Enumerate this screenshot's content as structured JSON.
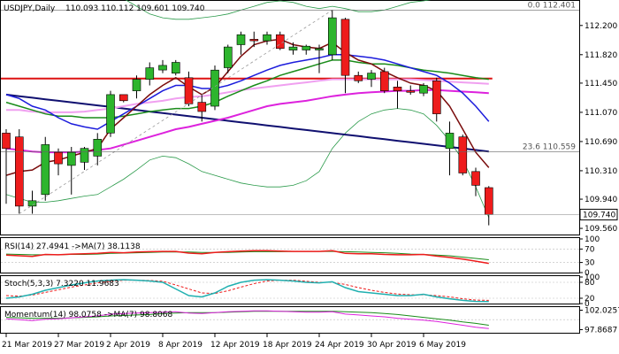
{
  "chart_data": {
    "type": "candlestick",
    "header": {
      "symbol": "USDJPY,Daily",
      "ohlc": "110.093 110.112 109.601 109.740"
    },
    "price_axis": {
      "ylim": [
        109.48,
        112.52
      ],
      "ticks": [
        "112.200",
        "111.820",
        "111.450",
        "111.070",
        "110.690",
        "110.310",
        "109.940",
        "109.560"
      ],
      "tick_values": [
        112.2,
        111.82,
        111.45,
        111.07,
        110.69,
        110.31,
        109.94,
        109.56
      ],
      "last_price_label": "109.740",
      "last_price": 109.74
    },
    "fib_levels": [
      {
        "label": "0.0 112.401",
        "value": 112.401
      },
      {
        "label": "23.6 110.559",
        "value": 110.559
      }
    ],
    "x_axis_labels": [
      {
        "label": "21 Mar 2019",
        "index": 0
      },
      {
        "label": "27 Mar 2019",
        "index": 4
      },
      {
        "label": "2 Apr 2019",
        "index": 8
      },
      {
        "label": "8 Apr 2019",
        "index": 12
      },
      {
        "label": "12 Apr 2019",
        "index": 16
      },
      {
        "label": "18 Apr 2019",
        "index": 20
      },
      {
        "label": "24 Apr 2019",
        "index": 24
      },
      {
        "label": "30 Apr 2019",
        "index": 28
      },
      {
        "label": "6 May 2019",
        "index": 32
      }
    ],
    "candles": [
      {
        "o": 110.8,
        "h": 110.85,
        "l": 109.88,
        "c": 110.6
      },
      {
        "o": 110.75,
        "h": 110.85,
        "l": 109.75,
        "c": 109.85
      },
      {
        "o": 109.85,
        "h": 110.05,
        "l": 109.75,
        "c": 109.92
      },
      {
        "o": 110.0,
        "h": 110.75,
        "l": 109.92,
        "c": 110.65
      },
      {
        "o": 110.55,
        "h": 110.6,
        "l": 110.25,
        "c": 110.4
      },
      {
        "o": 110.38,
        "h": 110.62,
        "l": 110.0,
        "c": 110.55
      },
      {
        "o": 110.42,
        "h": 110.62,
        "l": 110.32,
        "c": 110.6
      },
      {
        "o": 110.5,
        "h": 110.8,
        "l": 110.38,
        "c": 110.72
      },
      {
        "o": 110.8,
        "h": 111.35,
        "l": 110.75,
        "c": 111.3
      },
      {
        "o": 111.3,
        "h": 111.3,
        "l": 111.2,
        "c": 111.22
      },
      {
        "o": 111.35,
        "h": 111.55,
        "l": 111.25,
        "c": 111.5
      },
      {
        "o": 111.5,
        "h": 111.72,
        "l": 111.42,
        "c": 111.65
      },
      {
        "o": 111.62,
        "h": 111.75,
        "l": 111.58,
        "c": 111.68
      },
      {
        "o": 111.58,
        "h": 111.75,
        "l": 111.55,
        "c": 111.72
      },
      {
        "o": 111.52,
        "h": 111.6,
        "l": 111.15,
        "c": 111.18
      },
      {
        "o": 111.2,
        "h": 111.3,
        "l": 110.95,
        "c": 111.08
      },
      {
        "o": 111.15,
        "h": 111.68,
        "l": 111.1,
        "c": 111.62
      },
      {
        "o": 111.65,
        "h": 111.95,
        "l": 111.58,
        "c": 111.92
      },
      {
        "o": 111.95,
        "h": 112.12,
        "l": 111.82,
        "c": 112.08
      },
      {
        "o": 112.02,
        "h": 112.12,
        "l": 111.92,
        "c": 112.0
      },
      {
        "o": 112.0,
        "h": 112.12,
        "l": 111.95,
        "c": 112.08
      },
      {
        "o": 112.08,
        "h": 112.12,
        "l": 111.88,
        "c": 111.9
      },
      {
        "o": 111.88,
        "h": 111.98,
        "l": 111.82,
        "c": 111.92
      },
      {
        "o": 111.88,
        "h": 111.95,
        "l": 111.82,
        "c": 111.93
      },
      {
        "o": 111.88,
        "h": 111.95,
        "l": 111.58,
        "c": 111.9
      },
      {
        "o": 111.82,
        "h": 112.4,
        "l": 111.75,
        "c": 112.3
      },
      {
        "o": 112.28,
        "h": 112.3,
        "l": 111.32,
        "c": 111.55
      },
      {
        "o": 111.55,
        "h": 111.6,
        "l": 111.45,
        "c": 111.48
      },
      {
        "o": 111.5,
        "h": 111.62,
        "l": 111.4,
        "c": 111.58
      },
      {
        "o": 111.6,
        "h": 111.65,
        "l": 111.32,
        "c": 111.35
      },
      {
        "o": 111.4,
        "h": 111.48,
        "l": 111.12,
        "c": 111.35
      },
      {
        "o": 111.35,
        "h": 111.42,
        "l": 111.3,
        "c": 111.33
      },
      {
        "o": 111.32,
        "h": 111.45,
        "l": 111.28,
        "c": 111.42
      },
      {
        "o": 111.48,
        "h": 111.52,
        "l": 110.95,
        "c": 111.05
      },
      {
        "o": 110.6,
        "h": 110.95,
        "l": 110.25,
        "c": 110.8
      },
      {
        "o": 110.75,
        "h": 110.78,
        "l": 110.25,
        "c": 110.28
      },
      {
        "o": 110.3,
        "h": 110.35,
        "l": 109.98,
        "c": 110.12
      },
      {
        "o": 110.09,
        "h": 110.11,
        "l": 109.6,
        "c": 109.74
      }
    ],
    "overlays": {
      "ema_fast_dark_red": [
        110.25,
        110.3,
        110.32,
        110.42,
        110.45,
        110.5,
        110.55,
        110.6,
        110.85,
        111.0,
        111.15,
        111.3,
        111.42,
        111.52,
        111.4,
        111.3,
        111.4,
        111.6,
        111.8,
        111.95,
        112.0,
        112.02,
        111.95,
        111.92,
        111.9,
        111.98,
        111.85,
        111.75,
        111.7,
        111.6,
        111.52,
        111.45,
        111.42,
        111.35,
        111.15,
        110.85,
        110.55,
        110.35
      ],
      "ema_mid_blue": [
        111.3,
        111.25,
        111.15,
        111.1,
        111.0,
        110.92,
        110.88,
        110.85,
        110.95,
        111.05,
        111.15,
        111.25,
        111.35,
        111.42,
        111.42,
        111.38,
        111.38,
        111.42,
        111.48,
        111.55,
        111.62,
        111.68,
        111.72,
        111.75,
        111.78,
        111.82,
        111.82,
        111.8,
        111.78,
        111.75,
        111.7,
        111.65,
        111.6,
        111.55,
        111.45,
        111.32,
        111.15,
        110.95
      ],
      "sma_green": [
        111.2,
        111.15,
        111.1,
        111.05,
        111.02,
        111.02,
        111.0,
        111.0,
        111.0,
        111.02,
        111.05,
        111.08,
        111.1,
        111.12,
        111.12,
        111.15,
        111.2,
        111.28,
        111.35,
        111.42,
        111.48,
        111.55,
        111.6,
        111.65,
        111.7,
        111.75,
        111.75,
        111.72,
        111.7,
        111.7,
        111.68,
        111.65,
        111.62,
        111.6,
        111.58,
        111.55,
        111.52,
        111.5
      ],
      "sma_magenta": [
        110.6,
        110.58,
        110.56,
        110.55,
        110.55,
        110.55,
        110.56,
        110.58,
        110.6,
        110.65,
        110.7,
        110.75,
        110.8,
        110.85,
        110.88,
        110.92,
        110.96,
        111.0,
        111.05,
        111.1,
        111.15,
        111.18,
        111.2,
        111.22,
        111.25,
        111.28,
        111.3,
        111.32,
        111.33,
        111.34,
        111.35,
        111.35,
        111.36,
        111.36,
        111.35,
        111.34,
        111.33,
        111.32
      ],
      "sma_pink": [
        111.1,
        111.1,
        111.08,
        111.07,
        111.07,
        111.07,
        111.08,
        111.1,
        111.12,
        111.15,
        111.18,
        111.2,
        111.22,
        111.25,
        111.27,
        111.28,
        111.3,
        111.33,
        111.36,
        111.38,
        111.4,
        111.42,
        111.44,
        111.46,
        111.48,
        111.5,
        111.5,
        111.5,
        111.5,
        111.5,
        111.5,
        111.5,
        111.49,
        111.48,
        111.47,
        111.46,
        111.45,
        111.44
      ],
      "sma_long_navy": [
        111.3,
        111.28,
        111.26,
        111.24,
        111.22,
        111.2,
        111.18,
        111.16,
        111.14,
        111.12,
        111.1,
        111.08,
        111.06,
        111.04,
        111.02,
        111.0,
        110.98,
        110.96,
        110.94,
        110.92,
        110.9,
        110.88,
        110.86,
        110.84,
        110.82,
        110.8,
        110.78,
        110.76,
        110.74,
        110.72,
        110.7,
        110.68,
        110.66,
        110.64,
        110.62,
        110.6,
        110.58,
        110.56
      ],
      "horizontal_red": 111.51,
      "bollinger_upper": [
        112.55,
        112.6,
        112.62,
        112.65,
        112.62,
        112.6,
        112.55,
        112.55,
        112.6,
        112.55,
        112.45,
        112.35,
        112.3,
        112.28,
        112.28,
        112.3,
        112.32,
        112.35,
        112.4,
        112.45,
        112.5,
        112.52,
        112.5,
        112.45,
        112.42,
        112.45,
        112.42,
        112.38,
        112.38,
        112.4,
        112.45,
        112.5,
        112.52,
        112.55,
        112.55,
        112.6,
        112.7,
        112.8
      ],
      "bollinger_lower": [
        110.0,
        109.95,
        109.9,
        109.9,
        109.92,
        109.95,
        109.98,
        110.0,
        110.1,
        110.2,
        110.32,
        110.45,
        110.5,
        110.48,
        110.4,
        110.3,
        110.25,
        110.2,
        110.15,
        110.12,
        110.1,
        110.1,
        110.12,
        110.18,
        110.3,
        110.6,
        110.8,
        110.95,
        111.05,
        111.1,
        111.12,
        111.1,
        111.05,
        110.9,
        110.7,
        110.45,
        110.1,
        109.7
      ]
    },
    "rsi": {
      "label": "RSI(14) 27.4941  ->MA(7) 38.1138",
      "ylim": [
        0,
        100
      ],
      "ticks": [
        "100",
        "70",
        "30",
        "0"
      ],
      "tick_values": [
        100,
        70,
        30,
        0
      ],
      "series_red": [
        52,
        50,
        48,
        54,
        53,
        55,
        56,
        57,
        60,
        59,
        61,
        62,
        63,
        63,
        58,
        56,
        60,
        62,
        64,
        65,
        65,
        64,
        63,
        63,
        63,
        65,
        57,
        56,
        56,
        54,
        53,
        53,
        54,
        49,
        45,
        40,
        34,
        27.5
      ],
      "series_green": [
        55,
        54,
        53,
        53,
        53,
        54,
        54,
        55,
        57,
        58,
        59,
        60,
        61,
        61,
        61,
        60,
        60,
        60,
        61,
        62,
        62,
        62,
        63,
        63,
        63,
        63,
        62,
        61,
        60,
        59,
        57,
        55,
        54,
        52,
        50,
        46,
        42,
        38.1
      ]
    },
    "stoch": {
      "label": "Stoch(5,3,3) 7.3220 11.9683",
      "ylim": [
        0,
        100
      ],
      "ticks": [
        "100",
        "80",
        "20",
        "0"
      ],
      "tick_values": [
        100,
        80,
        20,
        0
      ],
      "series_teal": [
        20,
        25,
        35,
        50,
        60,
        70,
        78,
        85,
        88,
        90,
        88,
        85,
        80,
        55,
        30,
        25,
        40,
        65,
        80,
        88,
        90,
        88,
        85,
        80,
        78,
        82,
        60,
        45,
        40,
        35,
        30,
        30,
        35,
        25,
        18,
        12,
        8,
        7.3
      ],
      "series_red": [
        30,
        28,
        32,
        42,
        52,
        62,
        70,
        78,
        84,
        88,
        88,
        87,
        84,
        70,
        55,
        40,
        38,
        48,
        62,
        75,
        85,
        88,
        88,
        84,
        80,
        80,
        72,
        60,
        50,
        42,
        36,
        33,
        33,
        30,
        25,
        18,
        13,
        12
      ]
    },
    "momentum": {
      "label": "Momentum(14) 98.0758  ->MA(7) 98.8068",
      "ylim": [
        97.2,
        102.5
      ],
      "ticks": [
        "102.0257",
        "97.8687"
      ],
      "tick_values": [
        102.0257,
        97.8687
      ],
      "series_magenta": [
        100.2,
        100.0,
        99.8,
        100.1,
        100.2,
        100.4,
        100.6,
        100.8,
        101.2,
        101.3,
        101.4,
        101.5,
        101.6,
        101.7,
        101.4,
        101.3,
        101.5,
        101.7,
        101.8,
        101.9,
        101.9,
        101.8,
        101.7,
        101.6,
        101.6,
        101.7,
        101.2,
        101.0,
        100.8,
        100.6,
        100.3,
        100.1,
        99.9,
        99.6,
        99.2,
        98.8,
        98.4,
        98.1
      ],
      "series_green": [
        100.5,
        100.4,
        100.3,
        100.3,
        100.3,
        100.4,
        100.5,
        100.6,
        100.8,
        100.9,
        101.0,
        101.1,
        101.3,
        101.4,
        101.5,
        101.5,
        101.5,
        101.6,
        101.7,
        101.8,
        101.8,
        101.8,
        101.8,
        101.8,
        101.8,
        101.8,
        101.7,
        101.6,
        101.5,
        101.3,
        101.1,
        100.8,
        100.5,
        100.2,
        99.9,
        99.5,
        99.2,
        98.8
      ]
    },
    "colors": {
      "bull": "#2db52d",
      "bear": "#ee1c1c",
      "ema_fast": "#7a0c0c",
      "ema_mid": "#1c1cdc",
      "sma_green": "#1a8c1a",
      "sma_magenta": "#dd22dd",
      "sma_pink": "#f0a0f0",
      "sma_long": "#101070",
      "h_red": "#dd1111",
      "bollinger": "#2a9a4a",
      "stoch_teal": "#20b0b0"
    }
  }
}
